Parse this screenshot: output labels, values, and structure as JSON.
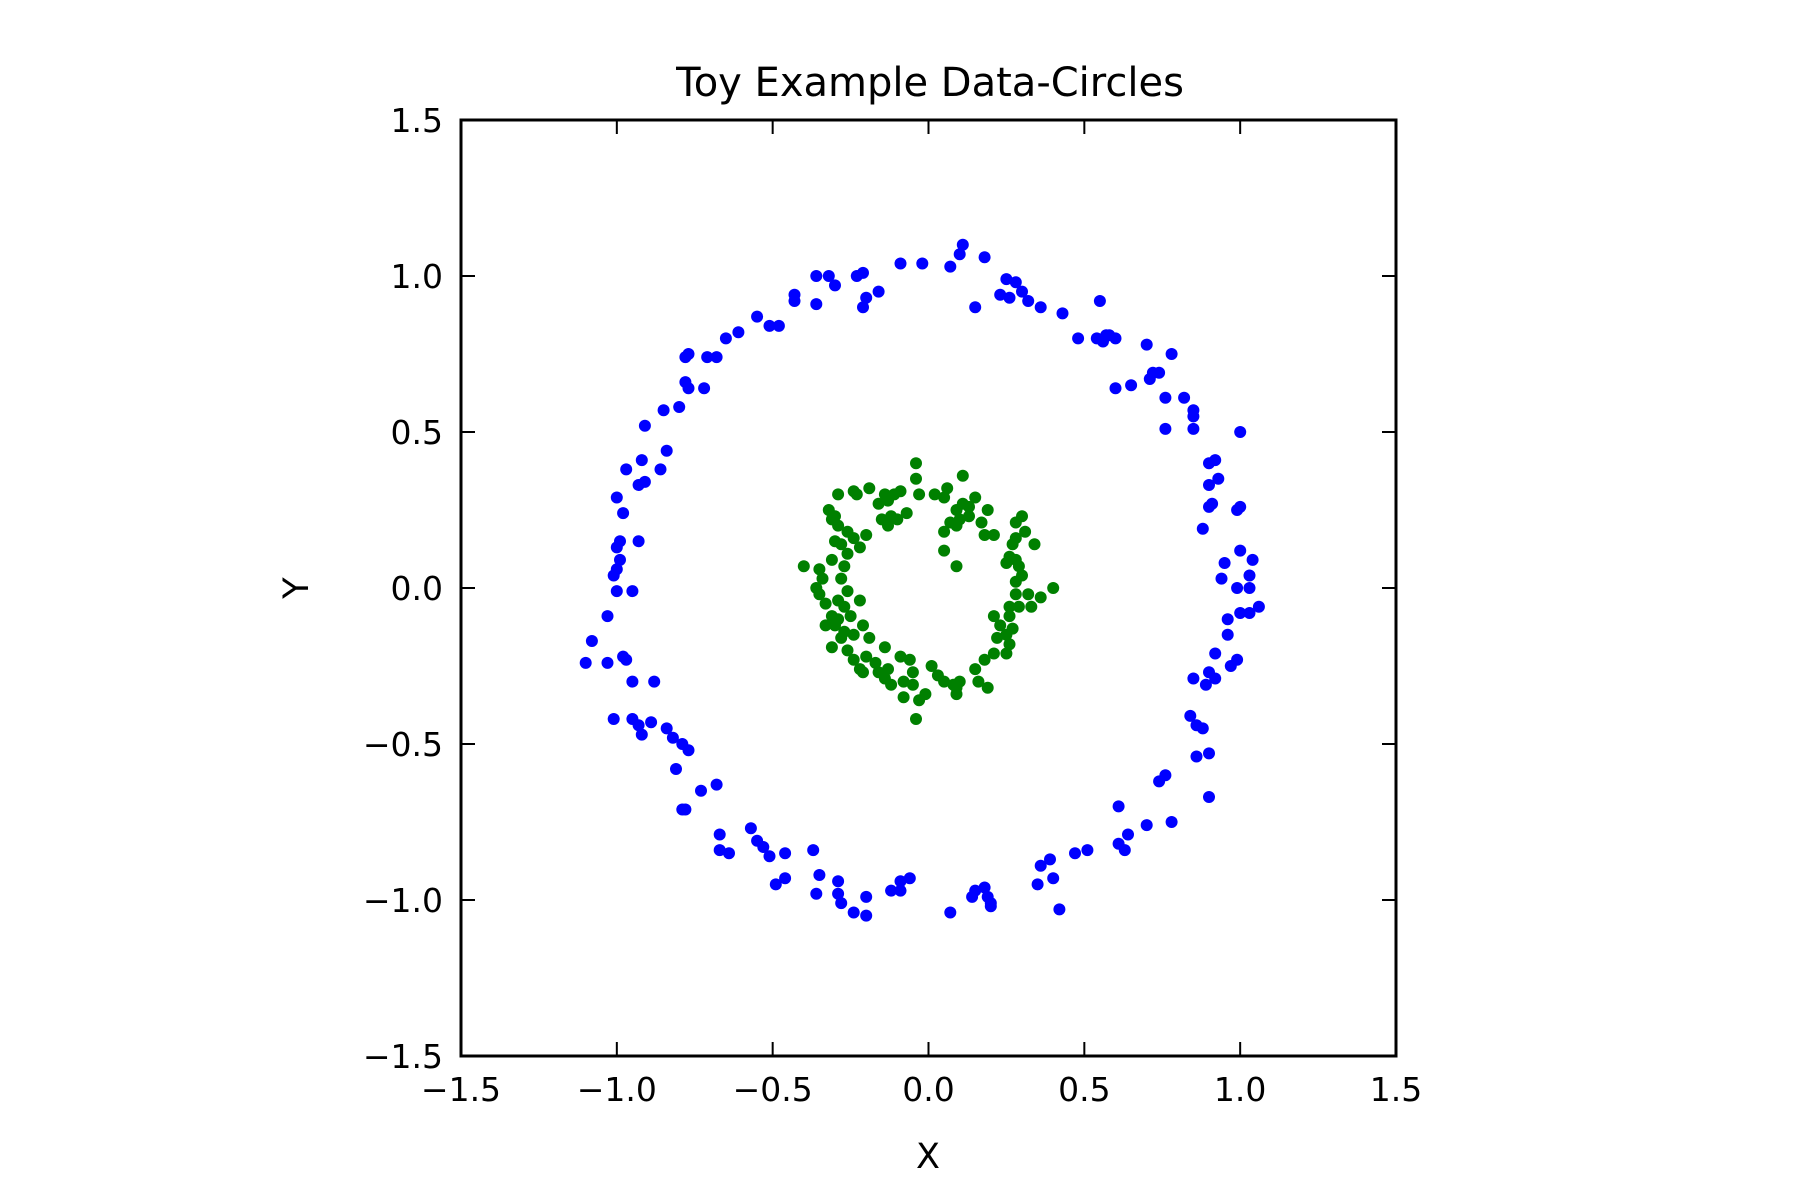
{
  "chart_data": {
    "type": "scatter",
    "title": "Toy Example Data-Circles",
    "xlabel": "X",
    "ylabel": "Y",
    "xlim": [
      -1.5,
      1.5
    ],
    "ylim": [
      -1.5,
      1.5
    ],
    "xticks": [
      -1.5,
      -1.0,
      -0.5,
      0.0,
      0.5,
      1.0,
      1.5
    ],
    "yticks": [
      -1.5,
      -1.0,
      -0.5,
      0.0,
      0.5,
      1.0,
      1.5
    ],
    "xtick_labels": [
      "−1.5",
      "−1.0",
      "−0.5",
      "0.0",
      "0.5",
      "1.0",
      "1.5"
    ],
    "ytick_labels": [
      "−1.5",
      "−1.0",
      "−0.5",
      "0.0",
      "0.5",
      "1.0",
      "1.5"
    ],
    "grid": false,
    "legend": "none",
    "series": [
      {
        "color": "#0000ff",
        "points": [
          [
            0.11,
            1.1
          ],
          [
            0.1,
            1.07
          ],
          [
            0.18,
            1.06
          ],
          [
            0.07,
            1.03
          ],
          [
            -0.02,
            1.04
          ],
          [
            -0.09,
            1.04
          ],
          [
            -0.21,
            1.01
          ],
          [
            -0.23,
            1.0
          ],
          [
            -0.36,
            1.0
          ],
          [
            -0.32,
            1.0
          ],
          [
            -0.3,
            0.97
          ],
          [
            -0.16,
            0.95
          ],
          [
            -0.2,
            0.93
          ],
          [
            -0.21,
            0.9
          ],
          [
            -0.36,
            0.91
          ],
          [
            -0.43,
            0.94
          ],
          [
            -0.43,
            0.92
          ],
          [
            -0.55,
            0.87
          ],
          [
            -0.51,
            0.84
          ],
          [
            -0.48,
            0.84
          ],
          [
            -0.61,
            0.82
          ],
          [
            -0.65,
            0.8
          ],
          [
            -0.71,
            0.74
          ],
          [
            -0.68,
            0.74
          ],
          [
            -0.78,
            0.74
          ],
          [
            -0.77,
            0.75
          ],
          [
            -0.78,
            0.66
          ],
          [
            -0.77,
            0.64
          ],
          [
            -0.72,
            0.64
          ],
          [
            -0.8,
            0.58
          ],
          [
            -0.85,
            0.57
          ],
          [
            -0.91,
            0.52
          ],
          [
            -0.84,
            0.44
          ],
          [
            -0.86,
            0.38
          ],
          [
            -0.92,
            0.41
          ],
          [
            -0.97,
            0.38
          ],
          [
            -0.91,
            0.34
          ],
          [
            -0.93,
            0.33
          ],
          [
            -1.0,
            0.29
          ],
          [
            -0.98,
            0.24
          ],
          [
            -0.93,
            0.15
          ],
          [
            -0.99,
            0.15
          ],
          [
            -1.0,
            0.13
          ],
          [
            -0.99,
            0.09
          ],
          [
            -1.0,
            0.06
          ],
          [
            -1.01,
            0.04
          ],
          [
            -0.95,
            -0.01
          ],
          [
            -1.0,
            -0.01
          ],
          [
            -1.03,
            -0.09
          ],
          [
            -1.08,
            -0.17
          ],
          [
            -1.1,
            -0.24
          ],
          [
            -1.03,
            -0.24
          ],
          [
            -0.98,
            -0.22
          ],
          [
            -0.97,
            -0.23
          ],
          [
            -0.95,
            -0.3
          ],
          [
            -0.88,
            -0.3
          ],
          [
            -1.01,
            -0.42
          ],
          [
            -0.95,
            -0.42
          ],
          [
            -0.93,
            -0.44
          ],
          [
            -0.89,
            -0.43
          ],
          [
            -0.92,
            -0.47
          ],
          [
            -0.84,
            -0.45
          ],
          [
            -0.82,
            -0.48
          ],
          [
            -0.79,
            -0.5
          ],
          [
            -0.77,
            -0.52
          ],
          [
            -0.81,
            -0.58
          ],
          [
            -0.79,
            -0.71
          ],
          [
            -0.78,
            -0.71
          ],
          [
            -0.73,
            -0.65
          ],
          [
            -0.68,
            -0.63
          ],
          [
            -0.67,
            -0.79
          ],
          [
            -0.67,
            -0.84
          ],
          [
            -0.64,
            -0.85
          ],
          [
            -0.57,
            -0.77
          ],
          [
            -0.55,
            -0.81
          ],
          [
            -0.53,
            -0.83
          ],
          [
            -0.51,
            -0.86
          ],
          [
            -0.46,
            -0.85
          ],
          [
            -0.46,
            -0.93
          ],
          [
            -0.49,
            -0.95
          ],
          [
            -0.37,
            -0.84
          ],
          [
            -0.35,
            -0.92
          ],
          [
            -0.36,
            -0.98
          ],
          [
            -0.29,
            -0.94
          ],
          [
            -0.28,
            -1.01
          ],
          [
            -0.29,
            -0.98
          ],
          [
            -0.24,
            -1.04
          ],
          [
            -0.2,
            -1.05
          ],
          [
            -0.2,
            -0.99
          ],
          [
            -0.12,
            -0.97
          ],
          [
            -0.09,
            -0.94
          ],
          [
            -0.06,
            -0.93
          ],
          [
            -0.09,
            -0.97
          ],
          [
            0.07,
            -1.04
          ],
          [
            0.14,
            -0.99
          ],
          [
            0.15,
            -0.97
          ],
          [
            0.18,
            -0.96
          ],
          [
            0.19,
            -0.99
          ],
          [
            0.2,
            -1.01
          ],
          [
            0.2,
            -1.02
          ],
          [
            0.36,
            -0.89
          ],
          [
            0.35,
            -0.95
          ],
          [
            0.39,
            -0.87
          ],
          [
            0.4,
            -0.93
          ],
          [
            0.42,
            -1.03
          ],
          [
            0.51,
            -0.84
          ],
          [
            0.47,
            -0.85
          ],
          [
            0.61,
            -0.7
          ],
          [
            0.64,
            -0.79
          ],
          [
            0.61,
            -0.82
          ],
          [
            0.63,
            -0.84
          ],
          [
            0.7,
            -0.76
          ],
          [
            0.74,
            -0.62
          ],
          [
            0.76,
            -0.6
          ],
          [
            0.78,
            -0.75
          ],
          [
            0.84,
            -0.41
          ],
          [
            0.86,
            -0.44
          ],
          [
            0.88,
            -0.45
          ],
          [
            0.86,
            -0.54
          ],
          [
            0.9,
            -0.53
          ],
          [
            0.9,
            -0.67
          ],
          [
            0.85,
            -0.29
          ],
          [
            0.89,
            -0.31
          ],
          [
            0.9,
            -0.27
          ],
          [
            0.92,
            -0.29
          ],
          [
            0.92,
            -0.21
          ],
          [
            0.99,
            -0.23
          ],
          [
            0.97,
            -0.25
          ],
          [
            0.96,
            -0.15
          ],
          [
            0.96,
            -0.1
          ],
          [
            1.0,
            -0.08
          ],
          [
            1.03,
            -0.08
          ],
          [
            1.06,
            -0.06
          ],
          [
            0.99,
            0.0
          ],
          [
            1.03,
            0.0
          ],
          [
            0.94,
            0.03
          ],
          [
            0.95,
            0.08
          ],
          [
            1.03,
            0.04
          ],
          [
            1.04,
            0.09
          ],
          [
            1.0,
            0.12
          ],
          [
            0.88,
            0.19
          ],
          [
            0.9,
            0.26
          ],
          [
            0.91,
            0.27
          ],
          [
            0.9,
            0.33
          ],
          [
            0.93,
            0.35
          ],
          [
            0.9,
            0.4
          ],
          [
            0.92,
            0.41
          ],
          [
            0.99,
            0.25
          ],
          [
            1.0,
            0.26
          ],
          [
            1.0,
            0.5
          ],
          [
            0.85,
            0.51
          ],
          [
            0.85,
            0.55
          ],
          [
            0.82,
            0.61
          ],
          [
            0.85,
            0.57
          ],
          [
            0.76,
            0.51
          ],
          [
            0.76,
            0.61
          ],
          [
            0.74,
            0.69
          ],
          [
            0.78,
            0.75
          ],
          [
            0.72,
            0.69
          ],
          [
            0.71,
            0.67
          ],
          [
            0.6,
            0.64
          ],
          [
            0.65,
            0.65
          ],
          [
            0.7,
            0.78
          ],
          [
            0.6,
            0.8
          ],
          [
            0.58,
            0.81
          ],
          [
            0.56,
            0.79
          ],
          [
            0.54,
            0.8
          ],
          [
            0.48,
            0.8
          ],
          [
            0.43,
            0.88
          ],
          [
            0.36,
            0.9
          ],
          [
            0.32,
            0.92
          ],
          [
            0.3,
            0.95
          ],
          [
            0.26,
            0.93
          ],
          [
            0.28,
            0.98
          ],
          [
            0.25,
            0.99
          ],
          [
            0.23,
            0.94
          ],
          [
            0.15,
            0.9
          ],
          [
            0.55,
            0.92
          ],
          [
            0.57,
            0.81
          ]
        ]
      },
      {
        "color": "#008000",
        "points": [
          [
            -0.04,
            0.4
          ],
          [
            0.11,
            0.36
          ],
          [
            0.02,
            0.3
          ],
          [
            0.05,
            0.29
          ],
          [
            0.06,
            0.32
          ],
          [
            -0.04,
            0.35
          ],
          [
            -0.09,
            0.31
          ],
          [
            -0.11,
            0.3
          ],
          [
            -0.16,
            0.27
          ],
          [
            -0.13,
            0.28
          ],
          [
            -0.19,
            0.32
          ],
          [
            -0.14,
            0.3
          ],
          [
            -0.23,
            0.3
          ],
          [
            -0.24,
            0.31
          ],
          [
            -0.29,
            0.3
          ],
          [
            -0.32,
            0.25
          ],
          [
            -0.3,
            0.23
          ],
          [
            -0.31,
            0.22
          ],
          [
            -0.29,
            0.2
          ],
          [
            -0.26,
            0.18
          ],
          [
            -0.22,
            0.13
          ],
          [
            -0.28,
            0.14
          ],
          [
            -0.3,
            0.15
          ],
          [
            -0.31,
            0.09
          ],
          [
            -0.26,
            0.11
          ],
          [
            -0.27,
            0.07
          ],
          [
            -0.28,
            0.03
          ],
          [
            -0.35,
            0.06
          ],
          [
            -0.34,
            0.03
          ],
          [
            -0.35,
            -0.02
          ],
          [
            -0.4,
            0.07
          ],
          [
            -0.36,
            0.0
          ],
          [
            -0.33,
            -0.05
          ],
          [
            -0.29,
            -0.04
          ],
          [
            -0.27,
            -0.06
          ],
          [
            -0.31,
            -0.09
          ],
          [
            -0.29,
            -0.1
          ],
          [
            -0.3,
            -0.12
          ],
          [
            -0.33,
            -0.12
          ],
          [
            -0.27,
            -0.14
          ],
          [
            -0.28,
            -0.16
          ],
          [
            -0.24,
            -0.15
          ],
          [
            -0.31,
            -0.19
          ],
          [
            -0.26,
            -0.2
          ],
          [
            -0.24,
            -0.23
          ],
          [
            -0.2,
            -0.22
          ],
          [
            -0.22,
            -0.26
          ],
          [
            -0.21,
            -0.27
          ],
          [
            -0.17,
            -0.24
          ],
          [
            -0.16,
            -0.27
          ],
          [
            -0.14,
            -0.29
          ],
          [
            -0.13,
            -0.26
          ],
          [
            -0.12,
            -0.31
          ],
          [
            -0.08,
            -0.3
          ],
          [
            -0.05,
            -0.31
          ],
          [
            -0.08,
            -0.35
          ],
          [
            -0.03,
            -0.36
          ],
          [
            -0.01,
            -0.34
          ],
          [
            -0.04,
            -0.42
          ],
          [
            -0.05,
            -0.27
          ],
          [
            0.01,
            -0.25
          ],
          [
            0.03,
            -0.28
          ],
          [
            0.05,
            -0.3
          ],
          [
            0.08,
            -0.31
          ],
          [
            0.09,
            -0.34
          ],
          [
            0.1,
            -0.3
          ],
          [
            0.09,
            -0.32
          ],
          [
            0.16,
            -0.3
          ],
          [
            0.19,
            -0.32
          ],
          [
            0.15,
            -0.26
          ],
          [
            0.18,
            -0.23
          ],
          [
            0.21,
            -0.21
          ],
          [
            0.25,
            -0.21
          ],
          [
            0.26,
            -0.18
          ],
          [
            0.22,
            -0.16
          ],
          [
            0.25,
            -0.15
          ],
          [
            0.27,
            -0.13
          ],
          [
            0.23,
            -0.12
          ],
          [
            0.21,
            -0.09
          ],
          [
            0.26,
            -0.09
          ],
          [
            0.26,
            -0.06
          ],
          [
            0.29,
            -0.06
          ],
          [
            0.33,
            -0.06
          ],
          [
            0.28,
            -0.02
          ],
          [
            0.32,
            -0.02
          ],
          [
            0.36,
            -0.03
          ],
          [
            0.4,
            0.0
          ],
          [
            0.28,
            0.02
          ],
          [
            0.3,
            0.04
          ],
          [
            0.29,
            0.07
          ],
          [
            0.28,
            0.09
          ],
          [
            0.25,
            0.08
          ],
          [
            0.26,
            0.1
          ],
          [
            0.27,
            0.14
          ],
          [
            0.28,
            0.16
          ],
          [
            0.31,
            0.18
          ],
          [
            0.28,
            0.21
          ],
          [
            0.3,
            0.23
          ],
          [
            0.34,
            0.14
          ],
          [
            0.21,
            0.17
          ],
          [
            0.18,
            0.17
          ],
          [
            0.17,
            0.21
          ],
          [
            0.19,
            0.25
          ],
          [
            0.13,
            0.26
          ],
          [
            0.15,
            0.29
          ],
          [
            0.11,
            0.27
          ],
          [
            0.09,
            0.25
          ],
          [
            0.1,
            0.22
          ],
          [
            0.13,
            0.23
          ],
          [
            0.07,
            0.21
          ],
          [
            0.09,
            0.2
          ],
          [
            0.05,
            0.18
          ],
          [
            0.05,
            0.12
          ],
          [
            0.09,
            0.07
          ],
          [
            -0.03,
            0.3
          ],
          [
            -0.07,
            0.24
          ],
          [
            -0.1,
            0.22
          ],
          [
            -0.12,
            0.23
          ],
          [
            -0.13,
            0.2
          ],
          [
            -0.15,
            0.22
          ],
          [
            -0.2,
            0.17
          ],
          [
            -0.24,
            0.16
          ],
          [
            -0.26,
            -0.01
          ],
          [
            -0.22,
            -0.04
          ],
          [
            -0.25,
            -0.09
          ],
          [
            -0.21,
            -0.12
          ],
          [
            -0.19,
            -0.16
          ],
          [
            -0.14,
            -0.19
          ],
          [
            -0.09,
            -0.22
          ],
          [
            -0.06,
            -0.23
          ]
        ]
      }
    ]
  }
}
